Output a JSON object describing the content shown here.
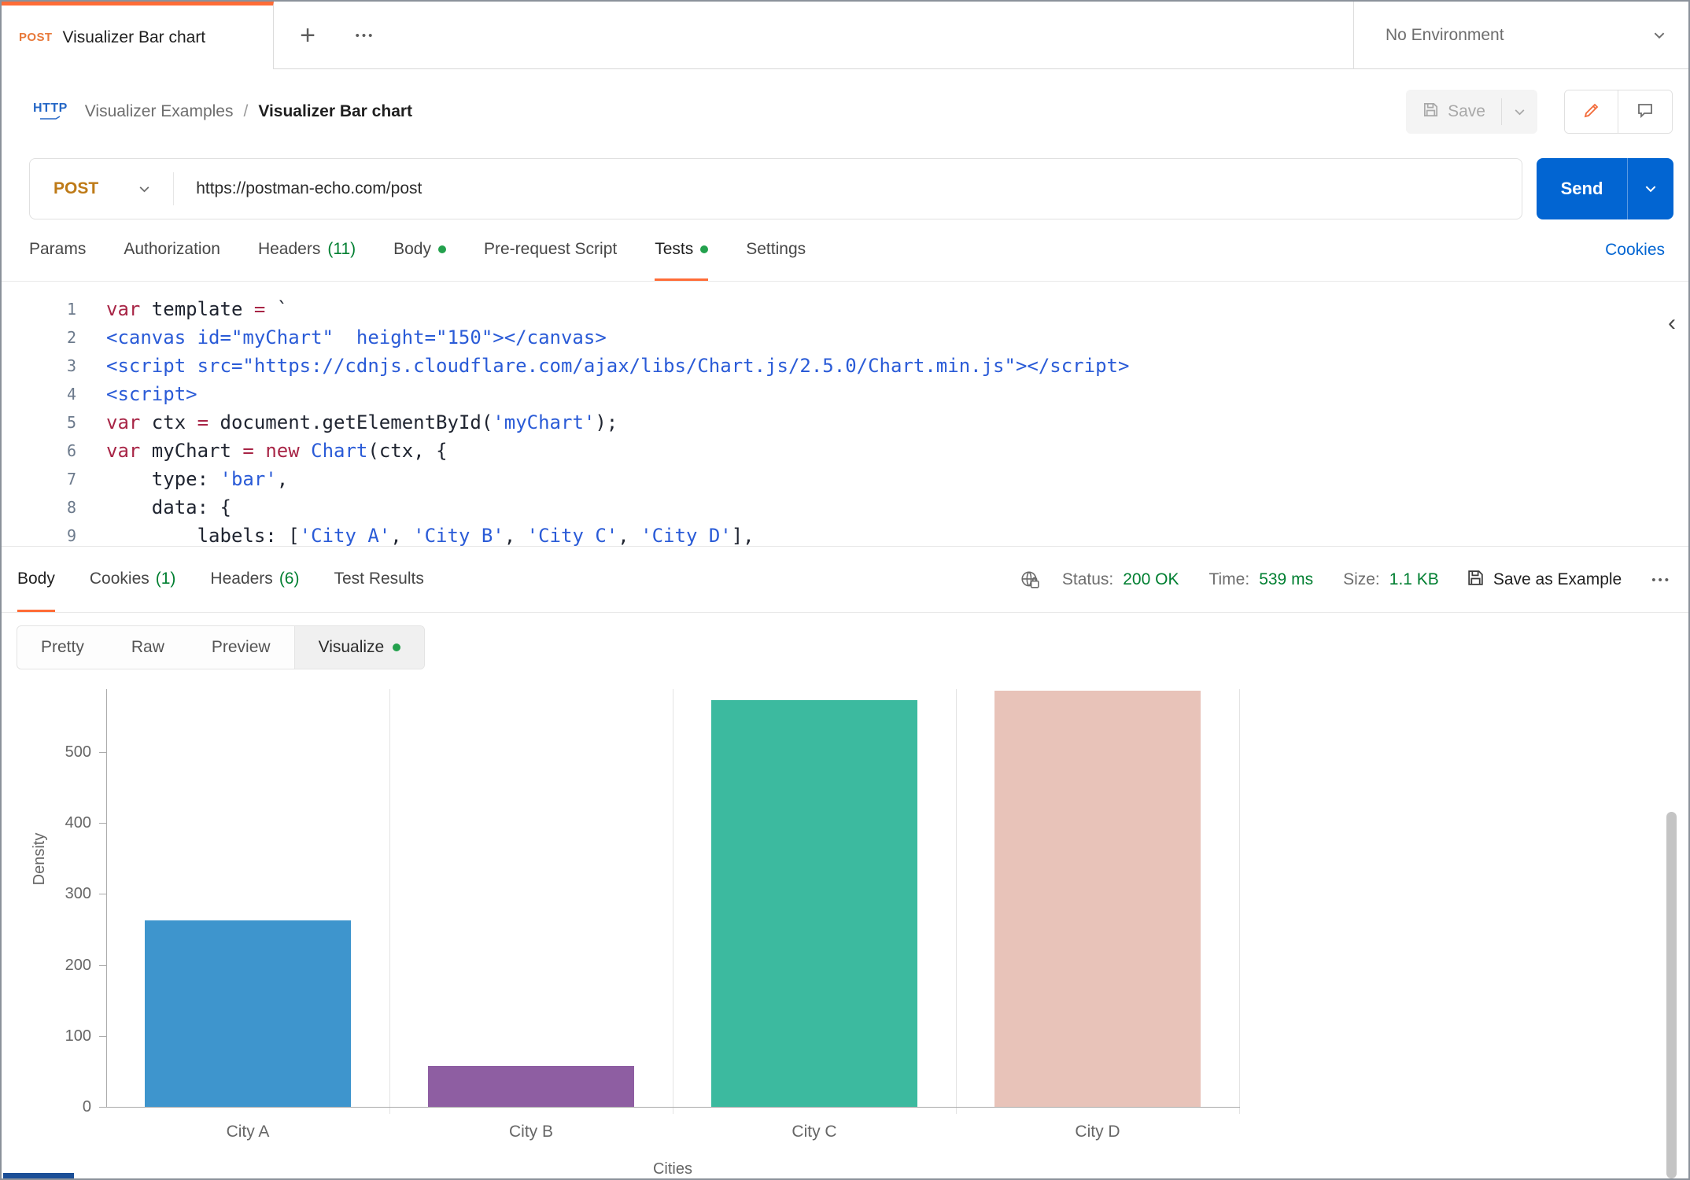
{
  "colors": {
    "accent_orange": "#FF6C37",
    "send_blue": "#0265D2",
    "status_green": "#007F31",
    "dot_green": "#23A14D",
    "link_blue": "#0265D2",
    "method_post": "#BE7A17"
  },
  "tabbar": {
    "tab_method": "POST",
    "tab_title": "Visualizer Bar chart",
    "plus_icon": "+",
    "more_icon": "•••",
    "environment": "No Environment"
  },
  "breadcrumb": {
    "http_icon_label": "HTTP",
    "parent": "Visualizer Examples",
    "separator": "/",
    "current": "Visualizer Bar chart"
  },
  "toolbar": {
    "save_label": "Save"
  },
  "request": {
    "method": "POST",
    "url": "https://postman-echo.com/post",
    "send_label": "Send",
    "cookies_link": "Cookies",
    "tabs": [
      {
        "label": "Params"
      },
      {
        "label": "Authorization"
      },
      {
        "label": "Headers",
        "count": "(11)"
      },
      {
        "label": "Body",
        "dot": true
      },
      {
        "label": "Pre-request Script"
      },
      {
        "label": "Tests",
        "dot": true,
        "active": true
      },
      {
        "label": "Settings"
      }
    ]
  },
  "editor": {
    "collapse_icon": "‹",
    "lines": [
      {
        "tokens": [
          [
            "var",
            "kw"
          ],
          [
            " template ",
            "pl"
          ],
          [
            "=",
            "kw"
          ],
          [
            " `",
            "pl"
          ]
        ]
      },
      {
        "tokens": [
          [
            "<canvas id=\"myChart\"  height=\"150\"></canvas>",
            "str"
          ]
        ]
      },
      {
        "tokens": [
          [
            "<script src=\"https://cdnjs.cloudflare.com/ajax/libs/Chart.js/2.5.0/Chart.min.js\"></script>",
            "str"
          ]
        ]
      },
      {
        "tokens": [
          [
            "<script>",
            "str"
          ]
        ]
      },
      {
        "tokens": [
          [
            "var",
            "kw"
          ],
          [
            " ctx ",
            "pl"
          ],
          [
            "=",
            "kw"
          ],
          [
            " document.getElementById(",
            "pl"
          ],
          [
            "'myChart'",
            "str"
          ],
          [
            ");",
            "pl"
          ]
        ]
      },
      {
        "tokens": [
          [
            "var",
            "kw"
          ],
          [
            " myChart ",
            "pl"
          ],
          [
            "=",
            "kw"
          ],
          [
            " ",
            "pl"
          ],
          [
            "new",
            "kw"
          ],
          [
            " ",
            "pl"
          ],
          [
            "Chart",
            "str"
          ],
          [
            "(ctx, {",
            "pl"
          ]
        ]
      },
      {
        "tokens": [
          [
            "    type: ",
            "pl"
          ],
          [
            "'bar'",
            "str"
          ],
          [
            ",",
            "pl"
          ]
        ]
      },
      {
        "tokens": [
          [
            "    data: {",
            "pl"
          ]
        ]
      },
      {
        "tokens": [
          [
            "        labels: [",
            "pl"
          ],
          [
            "'City A'",
            "str"
          ],
          [
            ", ",
            "pl"
          ],
          [
            "'City B'",
            "str"
          ],
          [
            ", ",
            "pl"
          ],
          [
            "'City C'",
            "str"
          ],
          [
            ", ",
            "pl"
          ],
          [
            "'City D'",
            "str"
          ],
          [
            "],",
            "pl"
          ]
        ]
      }
    ]
  },
  "response": {
    "tabs": [
      {
        "label": "Body",
        "active": true
      },
      {
        "label": "Cookies",
        "count": "(1)"
      },
      {
        "label": "Headers",
        "count": "(6)"
      },
      {
        "label": "Test Results"
      }
    ],
    "meta": {
      "status_label": "Status:",
      "status_value": "200 OK",
      "time_label": "Time:",
      "time_value": "539 ms",
      "size_label": "Size:",
      "size_value": "1.1 KB",
      "save_as_example": "Save as Example",
      "more_icon": "•••"
    },
    "views": [
      {
        "label": "Pretty"
      },
      {
        "label": "Raw"
      },
      {
        "label": "Preview"
      },
      {
        "label": "Visualize",
        "active": true,
        "dot": true
      }
    ]
  },
  "chart_data": {
    "type": "bar",
    "title": "",
    "categories": [
      "City A",
      "City B",
      "City C",
      "City D"
    ],
    "values": [
      263,
      58,
      573,
      586
    ],
    "colors": [
      "#3e95cd",
      "#8e5ea2",
      "#3cba9f",
      "#e8c3b9"
    ],
    "xlabel": "Cities",
    "ylabel": "Density",
    "y_ticks": [
      0,
      100,
      200,
      300,
      400,
      500
    ],
    "ylim_visible": [
      0,
      589
    ],
    "grid": "vertical-only",
    "legend": "none"
  }
}
